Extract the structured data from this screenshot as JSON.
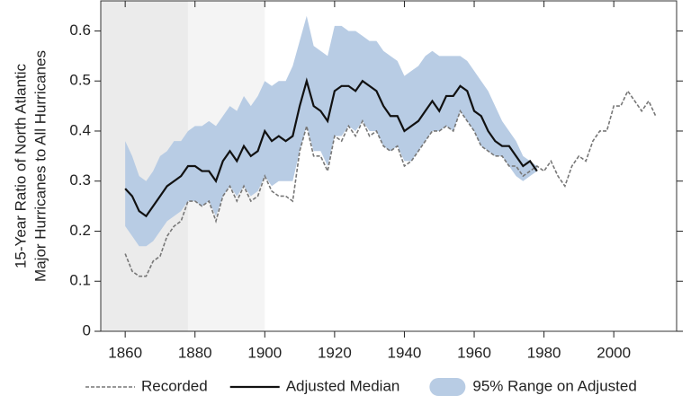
{
  "chart_data": {
    "type": "line",
    "ylabel": [
      "15-Year Ratio of North Atlantic",
      "Major Hurricanes to All Hurricanes"
    ],
    "xlim": [
      1853,
      2018
    ],
    "ylim": [
      0,
      0.66
    ],
    "xticks": [
      1860,
      1880,
      1900,
      1920,
      1940,
      1960,
      1980,
      2000
    ],
    "yticks": [
      0,
      0.1,
      0.2,
      0.3,
      0.4,
      0.5,
      0.6
    ],
    "shaded_spans": [
      {
        "range": [
          1853,
          1878
        ],
        "color": "#ebebeb"
      },
      {
        "range": [
          1878,
          1900
        ],
        "color": "#f4f4f4"
      }
    ],
    "x": [
      1860,
      1862,
      1864,
      1866,
      1868,
      1870,
      1872,
      1874,
      1876,
      1878,
      1880,
      1882,
      1884,
      1886,
      1888,
      1890,
      1892,
      1894,
      1896,
      1898,
      1900,
      1902,
      1904,
      1906,
      1908,
      1910,
      1912,
      1914,
      1916,
      1918,
      1920,
      1922,
      1924,
      1926,
      1928,
      1930,
      1932,
      1934,
      1936,
      1938,
      1940,
      1942,
      1944,
      1946,
      1948,
      1950,
      1952,
      1954,
      1956,
      1958,
      1960,
      1962,
      1964,
      1966,
      1968,
      1970,
      1972,
      1974,
      1976,
      1978,
      1980,
      1982,
      1984,
      1986,
      1988,
      1990,
      1992,
      1994,
      1996,
      1998,
      2000,
      2002,
      2004,
      2006,
      2008,
      2010,
      2012
    ],
    "series": [
      {
        "name": "Recorded",
        "kind": "line",
        "color": "#777777",
        "dashed": true,
        "values": [
          0.155,
          0.12,
          0.11,
          0.11,
          0.14,
          0.15,
          0.19,
          0.21,
          0.22,
          0.26,
          0.26,
          0.25,
          0.26,
          0.22,
          0.27,
          0.29,
          0.26,
          0.29,
          0.26,
          0.27,
          0.31,
          0.28,
          0.27,
          0.27,
          0.26,
          0.36,
          0.41,
          0.35,
          0.35,
          0.32,
          0.39,
          0.38,
          0.41,
          0.39,
          0.42,
          0.39,
          0.4,
          0.37,
          0.36,
          0.37,
          0.33,
          0.34,
          0.36,
          0.38,
          0.4,
          0.4,
          0.41,
          0.4,
          0.44,
          0.42,
          0.4,
          0.37,
          0.36,
          0.35,
          0.35,
          0.33,
          0.33,
          0.31,
          0.32,
          0.33,
          0.32,
          0.34,
          0.31,
          0.29,
          0.33,
          0.35,
          0.34,
          0.38,
          0.4,
          0.4,
          0.45,
          0.45,
          0.48,
          0.46,
          0.44,
          0.46,
          0.43
        ]
      },
      {
        "name": "Adjusted Median",
        "kind": "line",
        "color": "#111111",
        "dashed": false,
        "values": [
          0.285,
          0.27,
          0.24,
          0.23,
          0.25,
          0.27,
          0.29,
          0.3,
          0.31,
          0.33,
          0.33,
          0.32,
          0.32,
          0.3,
          0.34,
          0.36,
          0.34,
          0.37,
          0.35,
          0.36,
          0.4,
          0.38,
          0.39,
          0.38,
          0.39,
          0.45,
          0.5,
          0.45,
          0.44,
          0.42,
          0.48,
          0.49,
          0.49,
          0.48,
          0.5,
          0.49,
          0.48,
          0.45,
          0.43,
          0.43,
          0.4,
          0.41,
          0.42,
          0.44,
          0.46,
          0.44,
          0.47,
          0.47,
          0.49,
          0.48,
          0.44,
          0.43,
          0.4,
          0.38,
          0.37,
          0.37,
          0.35,
          0.33,
          0.34,
          0.32,
          null,
          null,
          null,
          null,
          null,
          null,
          null,
          null,
          null,
          null,
          null,
          null,
          null,
          null,
          null,
          null,
          null
        ]
      },
      {
        "name": "95% Range on Adjusted",
        "kind": "band",
        "color": "#b8cce4",
        "lower": [
          0.21,
          0.19,
          0.17,
          0.17,
          0.18,
          0.2,
          0.22,
          0.23,
          0.24,
          0.26,
          0.26,
          0.25,
          0.26,
          0.23,
          0.27,
          0.29,
          0.27,
          0.29,
          0.27,
          0.28,
          0.31,
          0.29,
          0.3,
          0.3,
          0.3,
          0.36,
          0.41,
          0.36,
          0.36,
          0.33,
          0.39,
          0.39,
          0.41,
          0.4,
          0.42,
          0.4,
          0.4,
          0.37,
          0.36,
          0.37,
          0.34,
          0.34,
          0.36,
          0.38,
          0.4,
          0.4,
          0.41,
          0.4,
          0.44,
          0.42,
          0.4,
          0.37,
          0.36,
          0.35,
          0.35,
          0.33,
          0.31,
          0.3,
          0.31,
          0.32,
          null,
          null,
          null,
          null,
          null,
          null,
          null,
          null,
          null,
          null,
          null,
          null,
          null,
          null,
          null,
          null,
          null
        ],
        "upper": [
          0.38,
          0.35,
          0.31,
          0.3,
          0.32,
          0.35,
          0.36,
          0.38,
          0.38,
          0.4,
          0.41,
          0.41,
          0.42,
          0.41,
          0.43,
          0.45,
          0.44,
          0.47,
          0.45,
          0.47,
          0.5,
          0.49,
          0.5,
          0.5,
          0.53,
          0.58,
          0.63,
          0.57,
          0.56,
          0.55,
          0.61,
          0.61,
          0.6,
          0.6,
          0.59,
          0.58,
          0.58,
          0.56,
          0.55,
          0.54,
          0.51,
          0.52,
          0.53,
          0.55,
          0.56,
          0.55,
          0.55,
          0.55,
          0.55,
          0.54,
          0.52,
          0.5,
          0.48,
          0.45,
          0.42,
          0.4,
          0.38,
          0.35,
          0.34,
          0.33,
          null,
          null,
          null,
          null,
          null,
          null,
          null,
          null,
          null,
          null,
          null,
          null,
          null,
          null,
          null,
          null,
          null
        ]
      }
    ]
  }
}
